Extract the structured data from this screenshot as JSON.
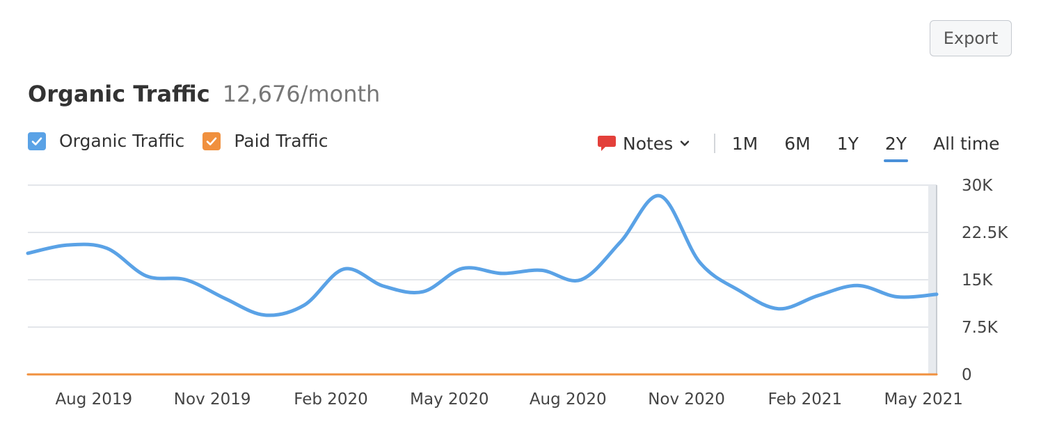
{
  "toolbar": {
    "export_label": "Export"
  },
  "header": {
    "title": "Organic Traffic",
    "subtitle": "12,676/month"
  },
  "legend": {
    "items": [
      {
        "label": "Organic Traffic",
        "color": "#5aa2e6",
        "checked": true
      },
      {
        "label": "Paid Traffic",
        "color": "#f0903e",
        "checked": true
      }
    ]
  },
  "controls": {
    "notes_label": "Notes",
    "notes_icon": "speech-bubble-icon",
    "ranges": [
      "1M",
      "6M",
      "1Y",
      "2Y",
      "All time"
    ],
    "active_range": "2Y"
  },
  "chart_data": {
    "type": "line",
    "y_tick_labels": [
      "0",
      "7.5K",
      "15K",
      "22.5K",
      "30K"
    ],
    "y_tick_values": [
      0,
      7500,
      15000,
      22500,
      30000
    ],
    "ylim": [
      0,
      30000
    ],
    "x_tick_labels": [
      "Aug 2019",
      "Nov 2019",
      "Feb 2020",
      "May 2020",
      "Aug 2020",
      "Nov 2020",
      "Feb 2021",
      "May 2021"
    ],
    "x_tick_index": [
      1.67,
      4.67,
      7.67,
      10.67,
      13.67,
      16.67,
      19.67,
      22.67
    ],
    "grid": true,
    "series": [
      {
        "name": "Organic Traffic",
        "color": "#5aa2e6",
        "values": [
          19200,
          20500,
          20000,
          15600,
          15000,
          12000,
          9400,
          11000,
          16700,
          14000,
          13100,
          16800,
          16000,
          16500,
          15000,
          21000,
          28300,
          17800,
          13300,
          10400,
          12500,
          14100,
          12300,
          12700
        ]
      },
      {
        "name": "Paid Traffic",
        "color": "#f0903e",
        "values": [
          0,
          0,
          0,
          0,
          0,
          0,
          0,
          0,
          0,
          0,
          0,
          0,
          0,
          0,
          0,
          0,
          0,
          0,
          0,
          0,
          0,
          0,
          0,
          0
        ]
      }
    ]
  }
}
